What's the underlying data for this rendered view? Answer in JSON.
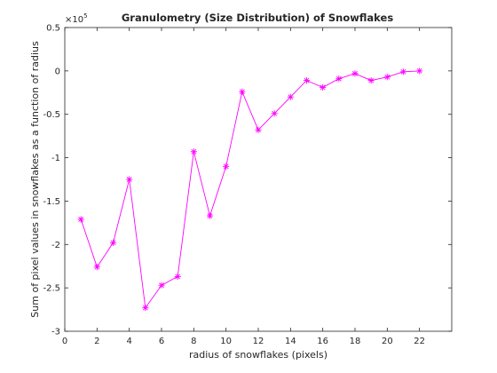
{
  "chart_data": {
    "type": "line",
    "title": "Granulometry (Size Distribution) of Snowflakes",
    "xlabel": "radius of snowflakes (pixels)",
    "ylabel": "Sum of pixel values in snowflakes as a function of radius",
    "y_exponent_base": "×10",
    "y_exponent_power": "5",
    "xlim": [
      0,
      24
    ],
    "ylim": [
      -3,
      0.5
    ],
    "xticks": [
      0,
      2,
      4,
      6,
      8,
      10,
      12,
      14,
      16,
      18,
      20,
      22
    ],
    "yticks": [
      {
        "v": 0.5,
        "label": "0.5"
      },
      {
        "v": 0,
        "label": "0"
      },
      {
        "v": -0.5,
        "label": "-0.5"
      },
      {
        "v": -1,
        "label": "-1"
      },
      {
        "v": -1.5,
        "label": "-1.5"
      },
      {
        "v": -2,
        "label": "-2"
      },
      {
        "v": -2.5,
        "label": "-2.5"
      },
      {
        "v": -3,
        "label": "-3"
      }
    ],
    "grid": false,
    "series": [
      {
        "color": "#ff00ff",
        "marker": "asterisk",
        "x": [
          1,
          2,
          3,
          4,
          5,
          6,
          7,
          8,
          9,
          10,
          11,
          12,
          13,
          14,
          15,
          16,
          17,
          18,
          19,
          20,
          21,
          22
        ],
        "y": [
          -1.71,
          -2.26,
          -1.98,
          -1.25,
          -2.73,
          -2.47,
          -2.37,
          -0.93,
          -1.67,
          -1.1,
          -0.24,
          -0.68,
          -0.49,
          -0.3,
          -0.11,
          -0.19,
          -0.09,
          -0.03,
          -0.11,
          -0.07,
          -0.01,
          0.0
        ]
      }
    ]
  }
}
